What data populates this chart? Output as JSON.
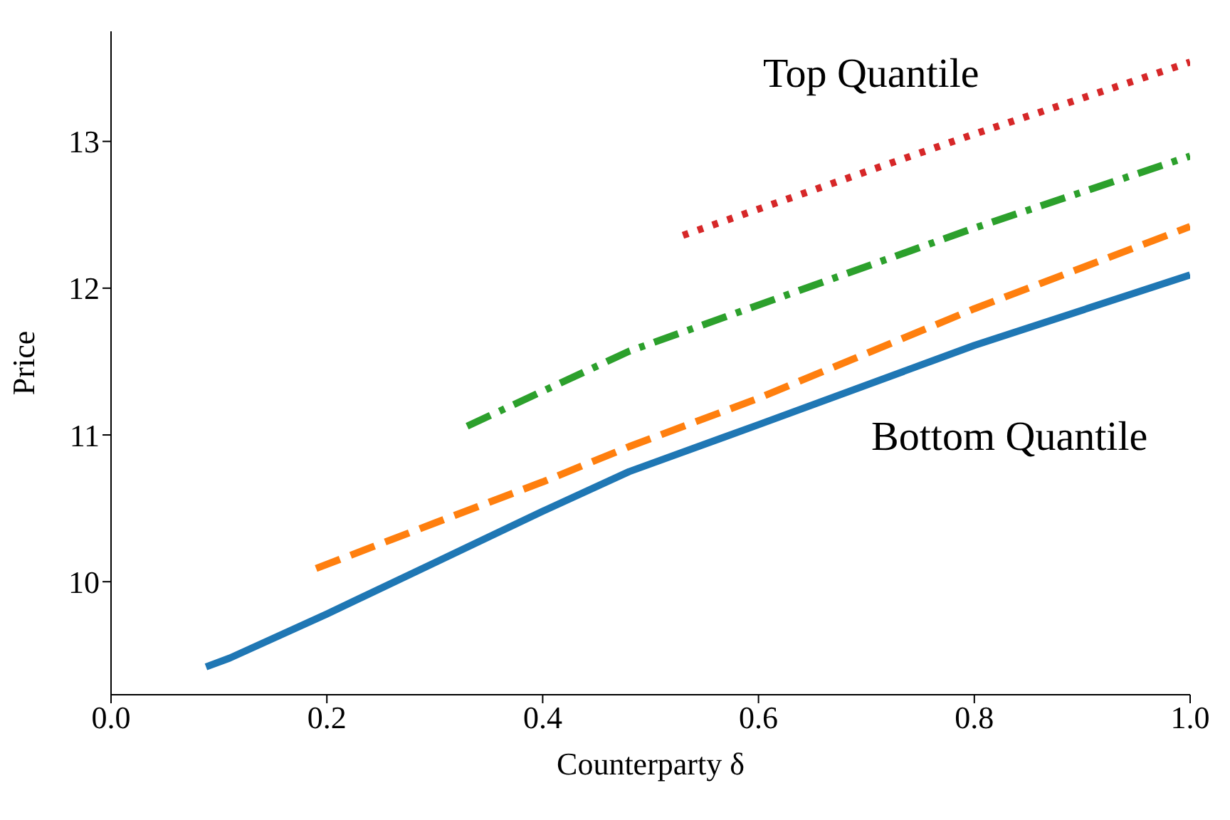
{
  "chart_data": {
    "type": "line",
    "xlabel": "Counterparty δ",
    "ylabel": "Price",
    "xlim": [
      0,
      1
    ],
    "xticks": [
      {
        "value": 0,
        "label": "0.0"
      },
      {
        "value": 0.2,
        "label": "0.2"
      },
      {
        "value": 0.4,
        "label": "0.4"
      },
      {
        "value": 0.6,
        "label": "0.6"
      },
      {
        "value": 0.8,
        "label": "0.8"
      },
      {
        "value": 1,
        "label": "1.0"
      }
    ],
    "ylim": [
      9.23,
      13.75
    ],
    "yticks": [
      10,
      11,
      12,
      13
    ],
    "grid": false,
    "legend": false,
    "marker": "none",
    "annotations": [
      "Top Quantile",
      "Bottom Quantile"
    ],
    "series": [
      {
        "color": "#1f77b4",
        "line_style": "solid",
        "x": [
          0.088,
          0.11,
          0.2,
          0.3,
          0.4,
          0.48,
          0.6,
          0.8,
          1.0
        ],
        "values": [
          9.42,
          9.48,
          9.78,
          10.13,
          10.48,
          10.75,
          11.07,
          11.61,
          12.09
        ]
      },
      {
        "color": "#ff7f0e",
        "line_style": "dashed",
        "x": [
          0.19,
          0.3,
          0.4,
          0.48,
          0.6,
          0.8,
          1.0
        ],
        "values": [
          10.09,
          10.4,
          10.68,
          10.92,
          11.25,
          11.86,
          12.42
        ]
      },
      {
        "color": "#2ca02c",
        "line_style": "dashdot",
        "x": [
          0.33,
          0.48,
          0.8,
          1.0
        ],
        "values": [
          11.06,
          11.57,
          12.41,
          12.9
        ]
      },
      {
        "color": "#d62728",
        "line_style": "dotted",
        "x": [
          0.53,
          0.8,
          1.0
        ],
        "values": [
          12.36,
          13.05,
          13.54
        ]
      }
    ]
  }
}
